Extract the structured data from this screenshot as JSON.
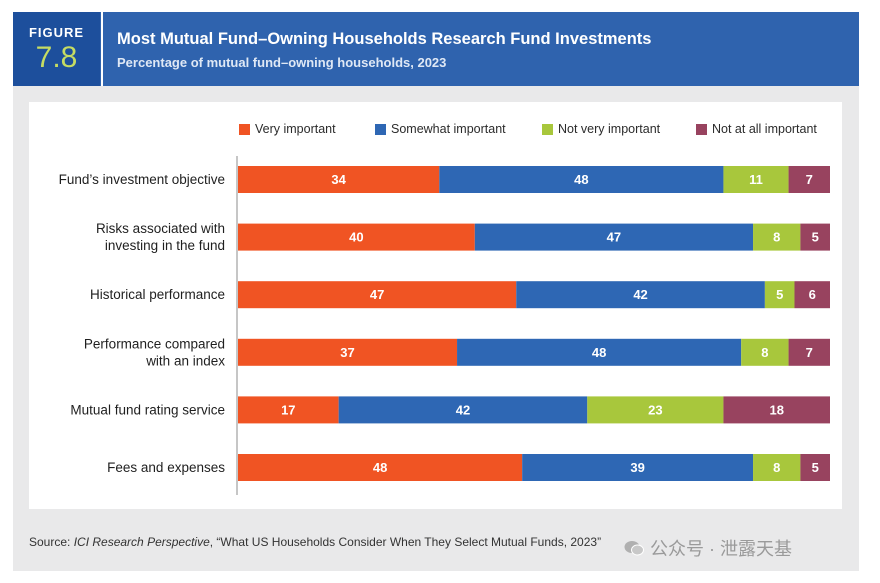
{
  "figure": {
    "label": "FIGURE",
    "number": "7.8"
  },
  "title": "Most Mutual Fund–Owning Households Research Fund Investments",
  "subtitle": "Percentage of mutual fund–owning households, 2023",
  "source": {
    "prefix": "Source: ",
    "italic": "ICI Research Perspective",
    "rest": ", “What US Households Consider When They Select Mutual Funds, 2023”"
  },
  "watermark": "公众号 · 泄露天基",
  "colors": {
    "very": "#f05423",
    "somewhat": "#2e67b4",
    "notvery": "#a8c73c",
    "notatall": "#98435f",
    "header": "#2f63ae",
    "figbox": "#1d4f9c",
    "accent": "#c5dc63"
  },
  "chart_data": {
    "type": "bar",
    "orientation": "horizontal",
    "stacked": true,
    "title": "Most Mutual Fund–Owning Households Research Fund Investments",
    "subtitle": "Percentage of mutual fund–owning households, 2023",
    "legend_position": "top-right",
    "xlim": [
      0,
      100
    ],
    "categories": [
      [
        "Fund’s investment objective"
      ],
      [
        "Risks associated with",
        "investing in the fund"
      ],
      [
        "Historical performance"
      ],
      [
        "Performance compared",
        "with an index"
      ],
      [
        "Mutual fund rating service"
      ],
      [
        "Fees and expenses"
      ]
    ],
    "series": [
      {
        "name": "Very important",
        "color": "#f05423",
        "values": [
          34,
          40,
          47,
          37,
          17,
          48
        ]
      },
      {
        "name": "Somewhat important",
        "color": "#2e67b4",
        "values": [
          48,
          47,
          42,
          48,
          42,
          39
        ]
      },
      {
        "name": "Not very important",
        "color": "#a8c73c",
        "values": [
          11,
          8,
          5,
          8,
          23,
          8
        ]
      },
      {
        "name": "Not at all important",
        "color": "#98435f",
        "values": [
          7,
          5,
          6,
          7,
          18,
          5
        ]
      }
    ]
  }
}
